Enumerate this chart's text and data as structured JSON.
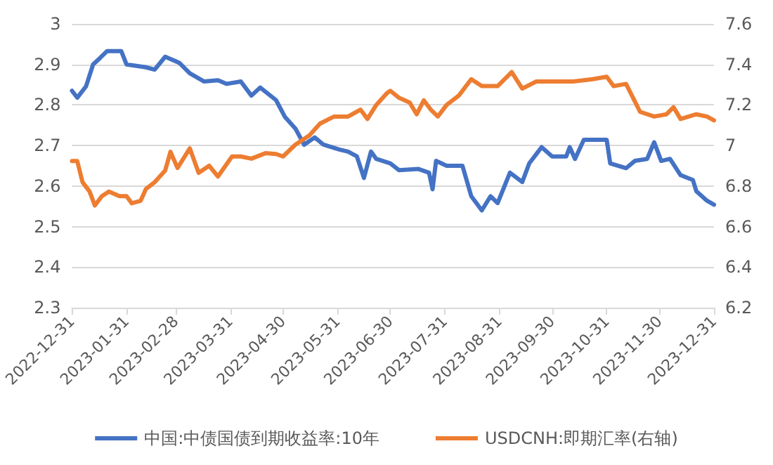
{
  "chart_data": {
    "type": "line",
    "xlim": [
      "2022-12-31",
      "2023-12-31"
    ],
    "xticks": [
      "2022-12-31",
      "2023-01-31",
      "2023-02-28",
      "2023-03-31",
      "2023-04-30",
      "2023-05-31",
      "2023-06-30",
      "2023-07-31",
      "2023-08-31",
      "2023-09-30",
      "2023-10-31",
      "2023-11-30",
      "2023-12-31"
    ],
    "ylim": [
      2.3,
      3
    ],
    "yticks": [
      2.3,
      2.4,
      2.5,
      2.6,
      2.7,
      2.8,
      2.9,
      3
    ],
    "y2lim": [
      6.2,
      7.6
    ],
    "y2ticks": [
      6.2,
      6.4,
      6.6,
      6.8,
      7,
      7.2,
      7.4,
      7.6
    ],
    "grid": "y",
    "legend": "bottom",
    "marker": "none",
    "line_style": "solid",
    "series": [
      {
        "name": "中国:中债国债到期收益率:10年",
        "color": "#4472c4",
        "x": [
          "2022-12-31",
          "2023-01-03",
          "2023-01-08",
          "2023-01-12",
          "2023-01-16",
          "2023-01-20",
          "2023-01-28",
          "2023-01-31",
          "2023-02-11",
          "2023-02-16",
          "2023-02-22",
          "2023-03-02",
          "2023-03-08",
          "2023-03-16",
          "2023-03-24",
          "2023-03-29",
          "2023-04-06",
          "2023-04-12",
          "2023-04-17",
          "2023-04-26",
          "2023-05-01",
          "2023-05-07",
          "2023-05-12",
          "2023-05-18",
          "2023-05-23",
          "2023-06-01",
          "2023-06-06",
          "2023-06-11",
          "2023-06-15",
          "2023-06-19",
          "2023-06-22",
          "2023-06-30",
          "2023-07-05",
          "2023-07-16",
          "2023-07-22",
          "2023-07-24",
          "2023-07-26",
          "2023-08-01",
          "2023-08-10",
          "2023-08-15",
          "2023-08-21",
          "2023-08-26",
          "2023-08-30",
          "2023-09-06",
          "2023-09-13",
          "2023-09-17",
          "2023-09-24",
          "2023-09-30",
          "2023-10-08",
          "2023-10-10",
          "2023-10-13",
          "2023-10-18",
          "2023-10-31",
          "2023-11-02",
          "2023-11-11",
          "2023-11-16",
          "2023-11-23",
          "2023-11-27",
          "2023-12-01",
          "2023-12-06",
          "2023-12-12",
          "2023-12-19",
          "2023-12-21",
          "2023-12-27",
          "2023-12-31"
        ],
        "values": [
          2.835,
          2.818,
          2.846,
          2.9,
          2.916,
          2.933,
          2.933,
          2.9,
          2.893,
          2.887,
          2.919,
          2.904,
          2.878,
          2.858,
          2.861,
          2.852,
          2.858,
          2.823,
          2.843,
          2.812,
          2.771,
          2.742,
          2.702,
          2.72,
          2.702,
          2.69,
          2.685,
          2.673,
          2.62,
          2.685,
          2.667,
          2.656,
          2.639,
          2.642,
          2.633,
          2.592,
          2.662,
          2.65,
          2.65,
          2.575,
          2.54,
          2.575,
          2.558,
          2.633,
          2.61,
          2.656,
          2.696,
          2.673,
          2.673,
          2.696,
          2.667,
          2.714,
          2.714,
          2.656,
          2.644,
          2.662,
          2.667,
          2.708,
          2.662,
          2.667,
          2.627,
          2.615,
          2.587,
          2.564,
          2.554
        ]
      },
      {
        "name": "USDCNH:即期汇率(右轴)",
        "color": "#ed7d31",
        "axis": "y2",
        "x": [
          "2022-12-31",
          "2023-01-03",
          "2023-01-06",
          "2023-01-10",
          "2023-01-13",
          "2023-01-17",
          "2023-01-21",
          "2023-01-27",
          "2023-01-31",
          "2023-02-03",
          "2023-02-08",
          "2023-02-11",
          "2023-02-16",
          "2023-02-22",
          "2023-02-25",
          "2023-03-01",
          "2023-03-08",
          "2023-03-13",
          "2023-03-19",
          "2023-03-24",
          "2023-04-01",
          "2023-04-06",
          "2023-04-12",
          "2023-04-20",
          "2023-04-26",
          "2023-04-30",
          "2023-05-07",
          "2023-05-15",
          "2023-05-21",
          "2023-05-29",
          "2023-06-06",
          "2023-06-13",
          "2023-06-17",
          "2023-06-22",
          "2023-06-28",
          "2023-06-30",
          "2023-07-05",
          "2023-07-11",
          "2023-07-15",
          "2023-07-19",
          "2023-07-23",
          "2023-07-27",
          "2023-08-01",
          "2023-08-08",
          "2023-08-15",
          "2023-08-21",
          "2023-08-30",
          "2023-09-07",
          "2023-09-13",
          "2023-09-21",
          "2023-09-30",
          "2023-10-12",
          "2023-10-23",
          "2023-10-31",
          "2023-11-04",
          "2023-11-11",
          "2023-11-19",
          "2023-11-27",
          "2023-12-04",
          "2023-12-08",
          "2023-12-12",
          "2023-12-21",
          "2023-12-27",
          "2023-12-31"
        ],
        "values": [
          6.923,
          6.923,
          6.819,
          6.773,
          6.704,
          6.75,
          6.773,
          6.75,
          6.75,
          6.715,
          6.727,
          6.785,
          6.819,
          6.877,
          6.969,
          6.889,
          6.986,
          6.865,
          6.9,
          6.847,
          6.946,
          6.946,
          6.935,
          6.962,
          6.958,
          6.946,
          7.004,
          7.05,
          7.108,
          7.143,
          7.143,
          7.177,
          7.131,
          7.2,
          7.258,
          7.27,
          7.235,
          7.212,
          7.154,
          7.223,
          7.177,
          7.143,
          7.2,
          7.247,
          7.327,
          7.293,
          7.293,
          7.362,
          7.281,
          7.316,
          7.316,
          7.316,
          7.327,
          7.339,
          7.293,
          7.304,
          7.166,
          7.143,
          7.154,
          7.189,
          7.131,
          7.154,
          7.143,
          7.124
        ]
      }
    ]
  }
}
